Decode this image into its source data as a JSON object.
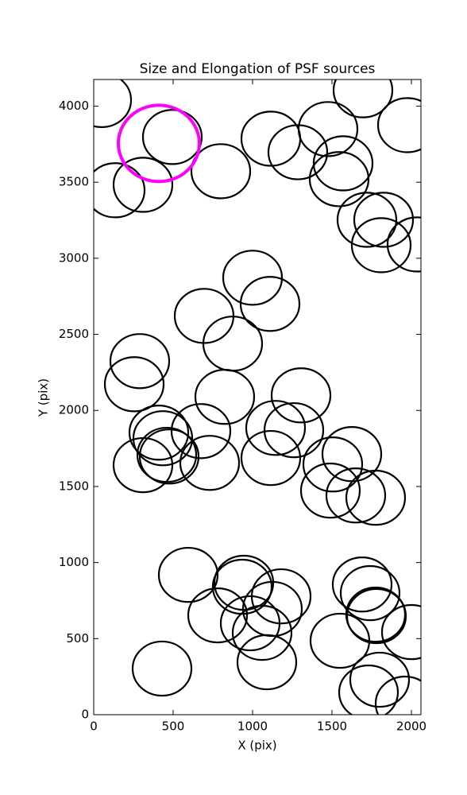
{
  "chart_data": {
    "type": "ellipse-scatter",
    "title": "Size and Elongation of PSF sources",
    "x_label": "X (pix)",
    "y_label": "Y (pix)",
    "xlim": [
      0,
      2060
    ],
    "ylim": [
      0,
      4175
    ],
    "xticks": [
      0,
      500,
      1000,
      1500,
      2000
    ],
    "yticks": [
      0,
      500,
      1000,
      1500,
      2000,
      2500,
      3000,
      3500,
      4000
    ],
    "grid": false,
    "series": [
      {
        "color": "#000000",
        "rx": 185,
        "ry": 178,
        "x": [
          50,
          495,
          135,
          310,
          800,
          1115,
          1285,
          1475,
          1570,
          1545,
          1695,
          1975,
          1720,
          1825,
          1810,
          2035,
          1000,
          1110,
          695,
          875,
          290,
          255,
          825,
          1305,
          675,
          410,
          435,
          1145,
          1260,
          460,
          475,
          310,
          730,
          1115,
          1625,
          1505,
          1490,
          1650,
          1775,
          595,
          945,
          935,
          1180,
          1125,
          780,
          985,
          1060,
          1090,
          430,
          1690,
          1740,
          1775,
          1780,
          2000,
          1550,
          1800,
          1730,
          1960
        ],
        "y": [
          4040,
          3797,
          3447,
          3483,
          3572,
          3786,
          3697,
          3849,
          3624,
          3520,
          4104,
          3875,
          3253,
          3253,
          3086,
          3091,
          2872,
          2700,
          2621,
          2439,
          2324,
          2172,
          2089,
          2099,
          1864,
          1854,
          1817,
          1885,
          1870,
          1708,
          1697,
          1640,
          1655,
          1687,
          1713,
          1645,
          1473,
          1441,
          1426,
          919,
          867,
          841,
          778,
          695,
          653,
          601,
          538,
          345,
          303,
          856,
          799,
          658,
          648,
          543,
          486,
          230,
          146,
          73
        ]
      },
      {
        "color": "#ff00ff",
        "rx": 255,
        "ry": 251,
        "x": [
          410
        ],
        "y": [
          3755
        ]
      }
    ]
  }
}
